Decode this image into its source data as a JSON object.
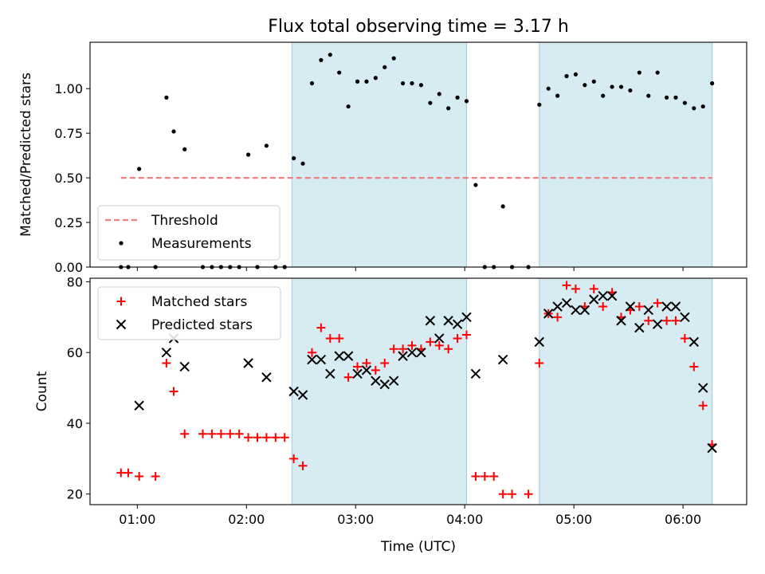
{
  "chart_data": [
    {
      "type": "scatter",
      "title": "Flux total observing time = 3.17 h",
      "xlabel": "",
      "ylabel": "Matched/Predicted stars",
      "x_range_utc": [
        "00:34",
        "06:35"
      ],
      "ylim": [
        0.0,
        1.26
      ],
      "yticks": [
        0.0,
        0.25,
        0.5,
        0.75,
        1.0
      ],
      "ytick_labels": [
        "0.00",
        "0.25",
        "0.50",
        "0.75",
        "1.00"
      ],
      "grid": false,
      "legend_position": "lower-left",
      "shaded_intervals_utc": [
        [
          "02:25",
          "04:01"
        ],
        [
          "04:41",
          "06:16"
        ]
      ],
      "series": [
        {
          "name": "Threshold",
          "style": "dashed-line",
          "color": "#f08080",
          "points": [
            [
              "00:51",
              0.5
            ],
            [
              "06:16",
              0.5
            ]
          ]
        },
        {
          "name": "Measurements",
          "style": "dot",
          "color": "#000000",
          "points": [
            [
              "00:51",
              0.0
            ],
            [
              "00:55",
              0.0
            ],
            [
              "01:01",
              0.55
            ],
            [
              "01:10",
              0.0
            ],
            [
              "01:16",
              0.95
            ],
            [
              "01:20",
              0.76
            ],
            [
              "01:26",
              0.66
            ],
            [
              "01:36",
              0.0
            ],
            [
              "01:41",
              0.0
            ],
            [
              "01:46",
              0.0
            ],
            [
              "01:51",
              0.0
            ],
            [
              "01:56",
              0.0
            ],
            [
              "02:01",
              0.63
            ],
            [
              "02:06",
              0.0
            ],
            [
              "02:11",
              0.68
            ],
            [
              "02:16",
              0.0
            ],
            [
              "02:21",
              0.0
            ],
            [
              "02:26",
              0.61
            ],
            [
              "02:31",
              0.58
            ],
            [
              "02:36",
              1.03
            ],
            [
              "02:41",
              1.16
            ],
            [
              "02:46",
              1.19
            ],
            [
              "02:51",
              1.09
            ],
            [
              "02:56",
              0.9
            ],
            [
              "03:01",
              1.04
            ],
            [
              "03:06",
              1.04
            ],
            [
              "03:11",
              1.06
            ],
            [
              "03:16",
              1.12
            ],
            [
              "03:21",
              1.17
            ],
            [
              "03:26",
              1.03
            ],
            [
              "03:31",
              1.03
            ],
            [
              "03:36",
              1.02
            ],
            [
              "03:41",
              0.92
            ],
            [
              "03:46",
              0.97
            ],
            [
              "03:51",
              0.89
            ],
            [
              "03:56",
              0.95
            ],
            [
              "04:01",
              0.93
            ],
            [
              "04:06",
              0.46
            ],
            [
              "04:11",
              0.0
            ],
            [
              "04:16",
              0.0
            ],
            [
              "04:21",
              0.34
            ],
            [
              "04:26",
              0.0
            ],
            [
              "04:35",
              0.0
            ],
            [
              "04:41",
              0.91
            ],
            [
              "04:46",
              1.0
            ],
            [
              "04:51",
              0.96
            ],
            [
              "04:56",
              1.07
            ],
            [
              "05:01",
              1.08
            ],
            [
              "05:06",
              1.02
            ],
            [
              "05:11",
              1.04
            ],
            [
              "05:16",
              0.96
            ],
            [
              "05:21",
              1.01
            ],
            [
              "05:26",
              1.01
            ],
            [
              "05:31",
              0.99
            ],
            [
              "05:36",
              1.09
            ],
            [
              "05:41",
              0.96
            ],
            [
              "05:46",
              1.09
            ],
            [
              "05:51",
              0.95
            ],
            [
              "05:56",
              0.95
            ],
            [
              "06:01",
              0.92
            ],
            [
              "06:06",
              0.89
            ],
            [
              "06:11",
              0.9
            ],
            [
              "06:16",
              1.03
            ]
          ]
        }
      ]
    },
    {
      "type": "scatter",
      "title": "",
      "xlabel": "Time (UTC)",
      "ylabel": "Count",
      "x_range_utc": [
        "00:34",
        "06:35"
      ],
      "ylim": [
        17,
        81
      ],
      "yticks": [
        20,
        40,
        60,
        80
      ],
      "xtick_labels": [
        "01:00",
        "02:00",
        "03:00",
        "04:00",
        "05:00",
        "06:00"
      ],
      "grid": false,
      "legend_position": "upper-left",
      "shaded_intervals_utc": [
        [
          "02:25",
          "04:01"
        ],
        [
          "04:41",
          "06:16"
        ]
      ],
      "series": [
        {
          "name": "Matched stars",
          "marker": "plus",
          "color": "#ff0000",
          "points": [
            [
              "00:51",
              26
            ],
            [
              "00:55",
              26
            ],
            [
              "01:01",
              25
            ],
            [
              "01:10",
              25
            ],
            [
              "01:16",
              57
            ],
            [
              "01:20",
              49
            ],
            [
              "01:26",
              37
            ],
            [
              "01:36",
              37
            ],
            [
              "01:41",
              37
            ],
            [
              "01:46",
              37
            ],
            [
              "01:51",
              37
            ],
            [
              "01:56",
              37
            ],
            [
              "02:01",
              36
            ],
            [
              "02:06",
              36
            ],
            [
              "02:11",
              36
            ],
            [
              "02:16",
              36
            ],
            [
              "02:21",
              36
            ],
            [
              "02:26",
              30
            ],
            [
              "02:31",
              28
            ],
            [
              "02:36",
              60
            ],
            [
              "02:41",
              67
            ],
            [
              "02:46",
              64
            ],
            [
              "02:51",
              64
            ],
            [
              "02:56",
              53
            ],
            [
              "03:01",
              56
            ],
            [
              "03:06",
              57
            ],
            [
              "03:11",
              55
            ],
            [
              "03:16",
              57
            ],
            [
              "03:21",
              61
            ],
            [
              "03:26",
              61
            ],
            [
              "03:31",
              62
            ],
            [
              "03:36",
              61
            ],
            [
              "03:41",
              63
            ],
            [
              "03:46",
              62
            ],
            [
              "03:51",
              61
            ],
            [
              "03:56",
              64
            ],
            [
              "04:01",
              65
            ],
            [
              "04:06",
              25
            ],
            [
              "04:11",
              25
            ],
            [
              "04:16",
              25
            ],
            [
              "04:21",
              20
            ],
            [
              "04:26",
              20
            ],
            [
              "04:35",
              20
            ],
            [
              "04:41",
              57
            ],
            [
              "04:46",
              71
            ],
            [
              "04:51",
              70
            ],
            [
              "04:56",
              79
            ],
            [
              "05:01",
              78
            ],
            [
              "05:06",
              73
            ],
            [
              "05:11",
              78
            ],
            [
              "05:16",
              73
            ],
            [
              "05:21",
              77
            ],
            [
              "05:26",
              70
            ],
            [
              "05:31",
              72
            ],
            [
              "05:36",
              73
            ],
            [
              "05:41",
              69
            ],
            [
              "05:46",
              74
            ],
            [
              "05:51",
              69
            ],
            [
              "05:56",
              69
            ],
            [
              "06:01",
              64
            ],
            [
              "06:06",
              56
            ],
            [
              "06:11",
              45
            ],
            [
              "06:16",
              34
            ]
          ]
        },
        {
          "name": "Predicted stars",
          "marker": "x",
          "color": "#000000",
          "points": [
            [
              "01:01",
              45
            ],
            [
              "01:16",
              60
            ],
            [
              "01:20",
              64
            ],
            [
              "01:26",
              56
            ],
            [
              "02:01",
              57
            ],
            [
              "02:11",
              53
            ],
            [
              "02:26",
              49
            ],
            [
              "02:31",
              48
            ],
            [
              "02:36",
              58
            ],
            [
              "02:41",
              58
            ],
            [
              "02:46",
              54
            ],
            [
              "02:51",
              59
            ],
            [
              "02:56",
              59
            ],
            [
              "03:01",
              54
            ],
            [
              "03:06",
              55
            ],
            [
              "03:11",
              52
            ],
            [
              "03:16",
              51
            ],
            [
              "03:21",
              52
            ],
            [
              "03:26",
              59
            ],
            [
              "03:31",
              60
            ],
            [
              "03:36",
              60
            ],
            [
              "03:41",
              69
            ],
            [
              "03:46",
              64
            ],
            [
              "03:51",
              69
            ],
            [
              "03:56",
              68
            ],
            [
              "04:01",
              70
            ],
            [
              "04:06",
              54
            ],
            [
              "04:21",
              58
            ],
            [
              "04:41",
              63
            ],
            [
              "04:46",
              71
            ],
            [
              "04:51",
              73
            ],
            [
              "04:56",
              74
            ],
            [
              "05:01",
              72
            ],
            [
              "05:06",
              72
            ],
            [
              "05:11",
              75
            ],
            [
              "05:16",
              76
            ],
            [
              "05:21",
              76
            ],
            [
              "05:26",
              69
            ],
            [
              "05:31",
              73
            ],
            [
              "05:36",
              67
            ],
            [
              "05:41",
              72
            ],
            [
              "05:46",
              68
            ],
            [
              "05:51",
              73
            ],
            [
              "05:56",
              73
            ],
            [
              "06:01",
              70
            ],
            [
              "06:06",
              63
            ],
            [
              "06:11",
              50
            ],
            [
              "06:16",
              33
            ]
          ]
        }
      ]
    }
  ]
}
